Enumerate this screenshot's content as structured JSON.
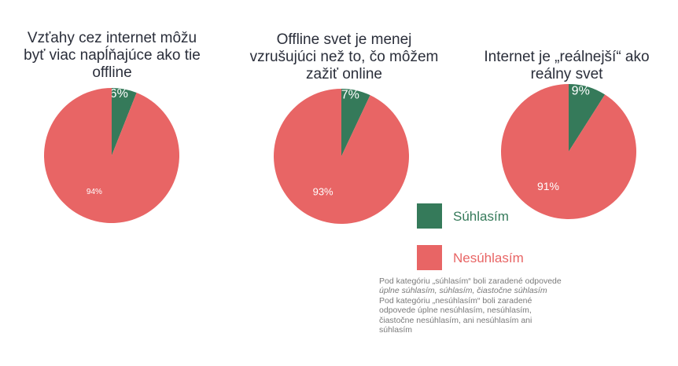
{
  "colors": {
    "agree": "#357a5a",
    "disagree": "#e86565",
    "title_text": "#2a2e3a",
    "note_text": "#7a7a7a"
  },
  "chart_data": [
    {
      "type": "pie",
      "title": "Vzťahy cez internet môžu byť viac napĺňajúce ako tie offline",
      "slices": [
        {
          "category": "Súhlasím",
          "value": 6,
          "label": "6%"
        },
        {
          "category": "Nesúhlasím",
          "value": 94,
          "label": "94%"
        }
      ]
    },
    {
      "type": "pie",
      "title": "Offline svet je menej vzrušujúci než to, čo môžem zažiť online",
      "slices": [
        {
          "category": "Súhlasím",
          "value": 7,
          "label": "7%"
        },
        {
          "category": "Nesúhlasím",
          "value": 93,
          "label": "93%"
        }
      ]
    },
    {
      "type": "pie",
      "title": "Internet je „reálnejší“ ako reálny svet",
      "slices": [
        {
          "category": "Súhlasím",
          "value": 9,
          "label": "9%"
        },
        {
          "category": "Nesúhlasím",
          "value": 91,
          "label": "91%"
        }
      ]
    }
  ],
  "legend": {
    "agree_label": "Súhlasím",
    "disagree_label": "Nesúhlasím"
  },
  "note": {
    "agree_prefix": "Pod kategóriu „súhlasím“ boli zaradené odpovede ",
    "agree_items": "úplne súhlasím, súhlasím, čiastočne súhlasím",
    "disagree_text": "Pod kategóriu „nesúhlasím“ boli zaradené odpovede úplne nesúhlasím, nesúhlasím, čiastočne nesúhlasím, ani nesúhlasím ani súhlasím"
  }
}
